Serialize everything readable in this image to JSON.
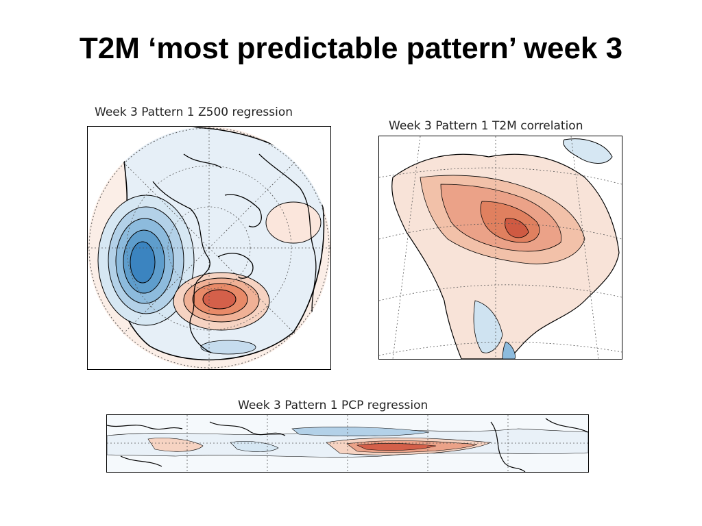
{
  "slide": {
    "title": "T2M ‘most predictable pattern’ week 3"
  },
  "panels": {
    "z500": {
      "title": "Week 3 Pattern 1 Z500 regression"
    },
    "t2m": {
      "title": "Week 3 Pattern 1 T2M correlation"
    },
    "pcp": {
      "title": "Week 3 Pattern 1 PCP regression"
    }
  },
  "colors": {
    "positive_strong": "#c9443a",
    "positive_mid": "#e88a68",
    "positive_weak": "#f6d3c2",
    "negative_strong": "#2f7ab9",
    "negative_mid": "#7fb3d8",
    "negative_weak": "#d6e7f3",
    "coast": "#000000"
  }
}
